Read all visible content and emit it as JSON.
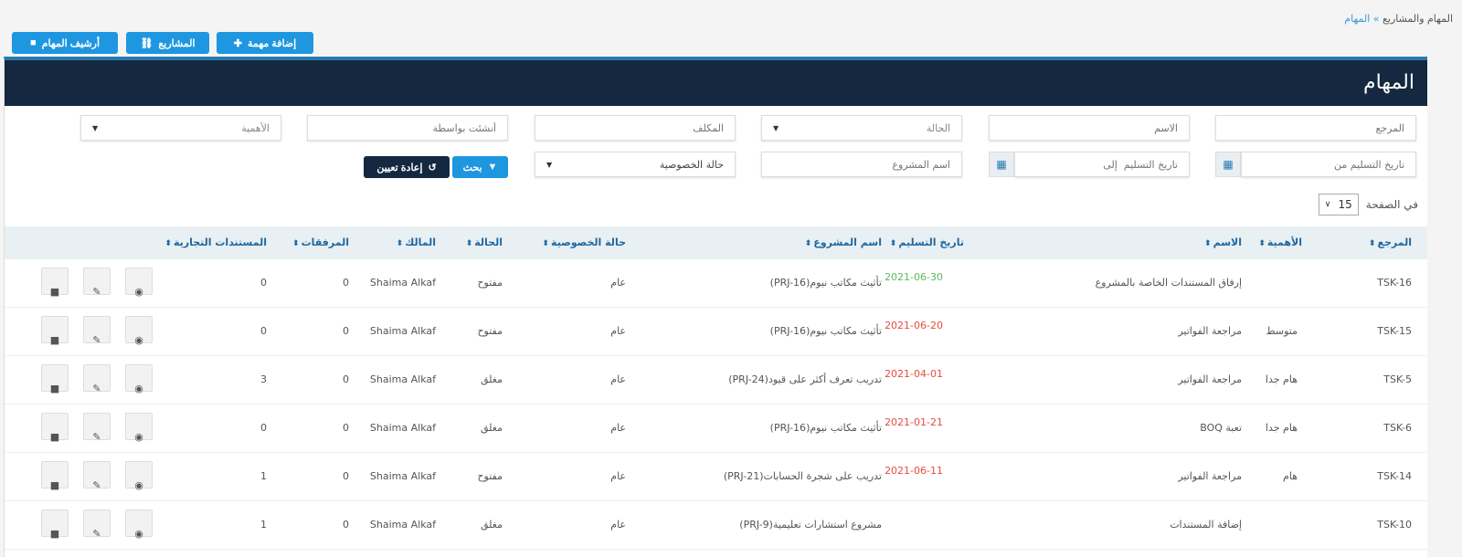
{
  "breadcrumb": {
    "parent": "المهام والمشاريع",
    "separator": "»",
    "current": "المهام"
  },
  "toolbar": {
    "add_task": "إضافة مهمة",
    "projects": "المشاريع",
    "archive": "أرشيف المهام"
  },
  "panel": {
    "title": "المهام"
  },
  "filters": {
    "ref": "المرجع",
    "name": "الاسم",
    "status": "الحالة",
    "assignee": "المكلف",
    "created_by": "أنشئت بواسطة",
    "importance": "الأهمية",
    "due_from": "تاريخ التسليم من",
    "due_to": "تاريخ التسليم  إلى",
    "project": "اسم المشروع",
    "privacy": "حالة الخصوصية",
    "search": "بحث",
    "reset": "إعادة تعيين"
  },
  "paging": {
    "label": "في الصفحة",
    "value": "15"
  },
  "columns": [
    "المرجع",
    "الأهمية",
    "الاسم",
    "تاريخ التسليم",
    "اسم المشروع",
    "حالة الخصوصية",
    "الحالة",
    "المالك",
    "المرفقات",
    "المستندات التجارية"
  ],
  "colors": {
    "accent": "#1e97e0",
    "header": "#14293f",
    "date_ok": "#5cb85c",
    "date_late": "#e74c3c"
  },
  "rows": [
    {
      "ref": "TSK-16",
      "importance": "",
      "name": "إرفاق المستندات الخاصة بالمشروع",
      "date": "2021-06-30",
      "date_status": "ok",
      "project": "تأثيث مكاتب نيوم(PRJ-16)",
      "privacy": "عام",
      "status": "مفتوح",
      "owner": "Shaima Alkaf",
      "attachments": "0",
      "docs": "0"
    },
    {
      "ref": "TSK-15",
      "importance": "متوسط",
      "name": "مراجعة الفواتير",
      "date": "2021-06-20",
      "date_status": "late",
      "project": "تأثيث مكاتب نيوم(PRJ-16)",
      "privacy": "عام",
      "status": "مفتوح",
      "owner": "Shaima Alkaf",
      "attachments": "0",
      "docs": "0"
    },
    {
      "ref": "TSK-5",
      "importance": "هام جدا",
      "name": "مراجعة الفواتير",
      "date": "2021-04-01",
      "date_status": "late",
      "project": "تدريب تعرف أكثر على قيود(PRJ-24)",
      "privacy": "عام",
      "status": "مغلق",
      "owner": "Shaima Alkaf",
      "attachments": "0",
      "docs": "3"
    },
    {
      "ref": "TSK-6",
      "importance": "هام جدا",
      "name": "تعبة BOQ",
      "date": "2021-01-21",
      "date_status": "late",
      "project": "تأثيث مكاتب نيوم(PRJ-16)",
      "privacy": "عام",
      "status": "مغلق",
      "owner": "Shaima Alkaf",
      "attachments": "0",
      "docs": "0"
    },
    {
      "ref": "TSK-14",
      "importance": "هام",
      "name": "مراجعة الفواتير",
      "date": "2021-06-11",
      "date_status": "late",
      "project": "تدريب على شجرة الحسابات(PRJ-21)",
      "privacy": "عام",
      "status": "مفتوح",
      "owner": "Shaima Alkaf",
      "attachments": "0",
      "docs": "1"
    },
    {
      "ref": "TSK-10",
      "importance": "",
      "name": "إضافة المستندات",
      "date": "",
      "date_status": "",
      "project": "مشروع استشارات تعليمية(PRJ-9)",
      "privacy": "عام",
      "status": "مغلق",
      "owner": "Shaima Alkaf",
      "attachments": "0",
      "docs": "1"
    }
  ]
}
